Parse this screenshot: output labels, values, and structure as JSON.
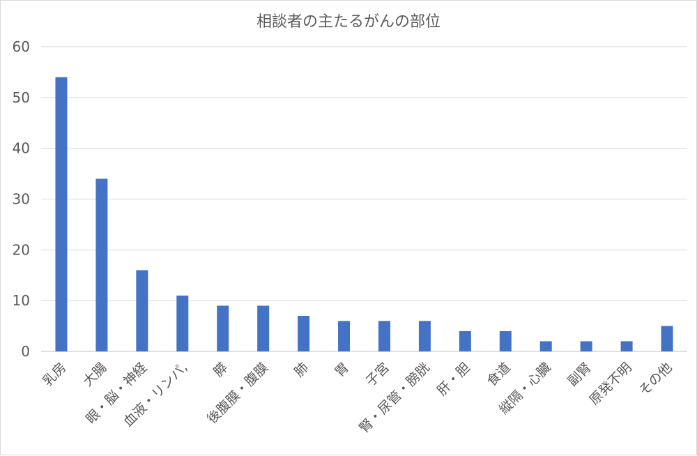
{
  "chart_data": {
    "type": "bar",
    "title": "相談者の主たるがんの部位",
    "xlabel": "",
    "ylabel": "",
    "ylim": [
      0,
      60
    ],
    "yticks": [
      0,
      10,
      20,
      30,
      40,
      50,
      60
    ],
    "grid": true,
    "legend": "none",
    "bar_color": "#4472C4",
    "categories": [
      "乳房",
      "大腸",
      "眼・脳・神経",
      "血液・リンパ,",
      "膵",
      "後腹膜・腹膜",
      "肺",
      "胃",
      "子宮",
      "腎・尿管・膀胱",
      "肝・胆",
      "食道",
      "縦隔・心臓",
      "副腎",
      "原発不明",
      "その他"
    ],
    "values": [
      54,
      34,
      16,
      11,
      9,
      9,
      7,
      6,
      6,
      6,
      4,
      4,
      2,
      2,
      2,
      5
    ]
  }
}
